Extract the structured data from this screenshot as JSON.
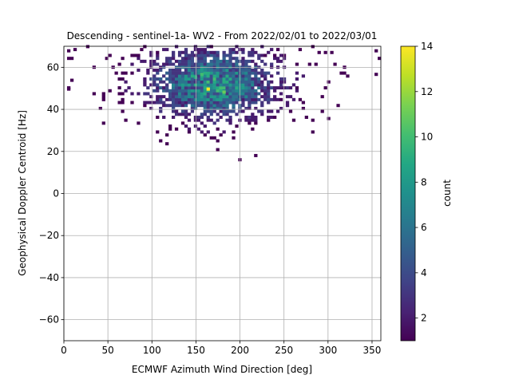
{
  "chart_data": {
    "type": "heatmap",
    "title": "Descending - sentinel-1a- WV2 - From 2022/02/01 to 2022/03/01",
    "xlabel": "ECMWF Azimuth Wind Direction [deg]",
    "ylabel": "Geophysical Doppler Centroid [Hz]",
    "xlim": [
      0,
      360
    ],
    "ylim": [
      -70,
      70
    ],
    "xticks": [
      0,
      50,
      100,
      150,
      200,
      250,
      300,
      350
    ],
    "yticks": [
      -60,
      -40,
      -20,
      0,
      20,
      40,
      60
    ],
    "grid": true,
    "bin_width_deg": 3.6,
    "bin_height_hz": 1.4,
    "colorbar": {
      "label": "count",
      "colormap": "viridis",
      "range": [
        1,
        14
      ],
      "ticks": [
        2,
        4,
        6,
        8,
        10,
        12,
        14
      ]
    },
    "density_model": {
      "shape": "approx. gaussian cloud",
      "peak_count": 14,
      "center_x_deg": 170,
      "center_y_hz": 52,
      "sigma_x_deg": 45,
      "sigma_y_hz": 10,
      "min_y_hz": 16,
      "max_y_hz": 70
    },
    "notable_points": [
      {
        "x": 5,
        "y": 68,
        "count": 1
      },
      {
        "x": 10,
        "y": 54,
        "count": 1
      },
      {
        "x": 5,
        "y": 50,
        "count": 1
      },
      {
        "x": 165,
        "y": 50,
        "count": 14
      },
      {
        "x": 180,
        "y": 48,
        "count": 11
      },
      {
        "x": 155,
        "y": 57,
        "count": 10
      },
      {
        "x": 150,
        "y": 55,
        "count": 9
      },
      {
        "x": 200,
        "y": 16,
        "count": 1
      },
      {
        "x": 355,
        "y": 57,
        "count": 1
      },
      {
        "x": 355,
        "y": 68,
        "count": 1
      },
      {
        "x": 300,
        "y": 36,
        "count": 1
      }
    ]
  }
}
